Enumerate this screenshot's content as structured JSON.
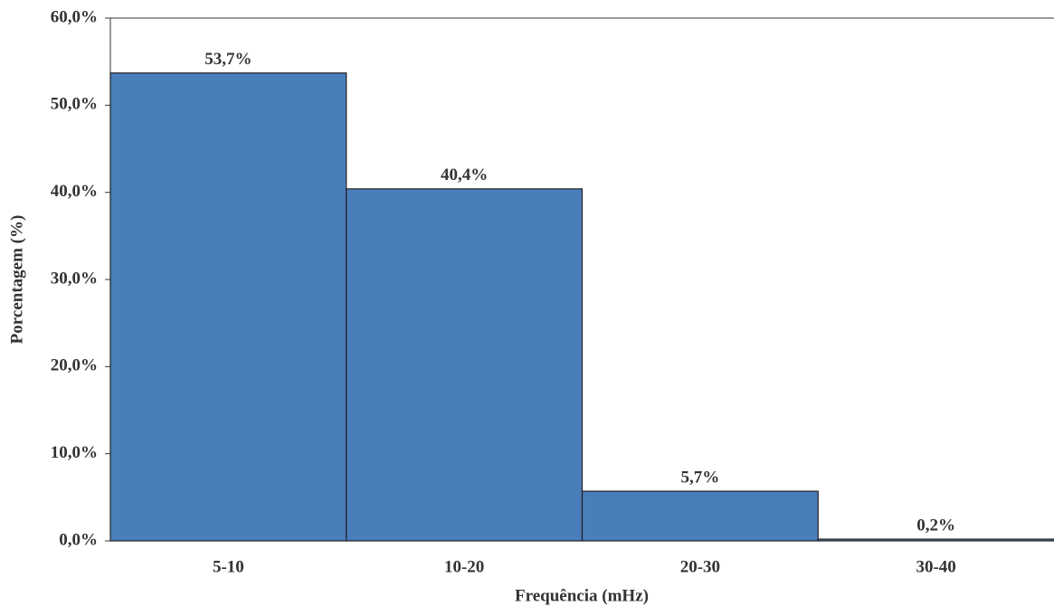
{
  "chart_data": {
    "type": "bar",
    "categories": [
      "5-10",
      "10-20",
      "20-30",
      "30-40"
    ],
    "values": [
      53.7,
      40.4,
      5.7,
      0.2
    ],
    "value_labels": [
      "53,7%",
      "40,4%",
      "5,7%",
      "0,2%"
    ],
    "color": "#4a7ebb",
    "x_label": "Frequência (mHz)",
    "y_label": "Porcentagem (%)",
    "ylim": [
      0,
      60
    ],
    "yticks": [
      {
        "value": 0,
        "label": "0,0%"
      },
      {
        "value": 10,
        "label": "10,0%"
      },
      {
        "value": 20,
        "label": "20,0%"
      },
      {
        "value": 30,
        "label": "30,0%"
      },
      {
        "value": 40,
        "label": "40,0%"
      },
      {
        "value": 50,
        "label": "50,0%"
      },
      {
        "value": 60,
        "label": "60,0%"
      }
    ],
    "grid": false
  }
}
